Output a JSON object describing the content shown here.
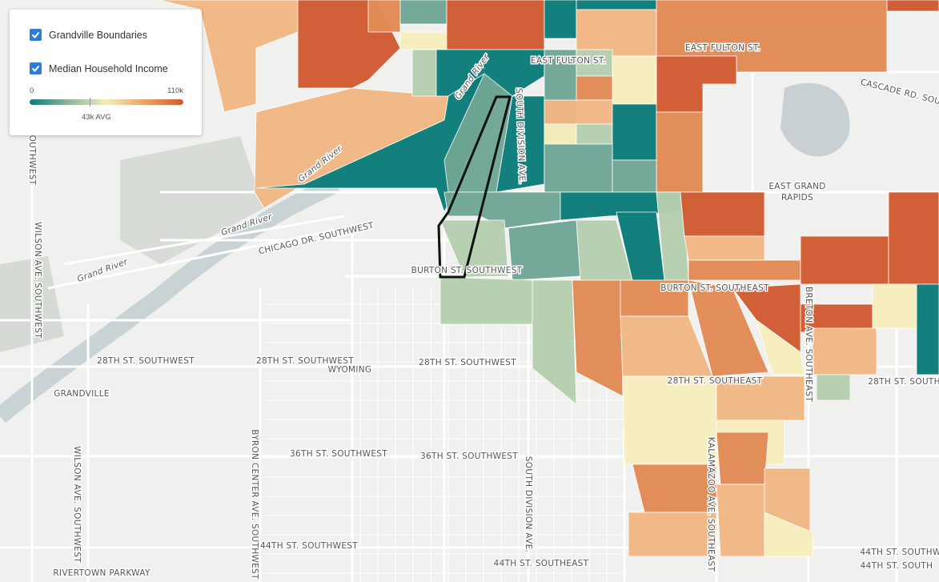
{
  "legend": {
    "layers": [
      {
        "label": "Grandville Boundaries",
        "checked": true
      },
      {
        "label": "Median Household Income",
        "checked": true
      }
    ],
    "scale": {
      "min": "0",
      "max": "110k",
      "avg": "43k AVG"
    }
  },
  "map_labels": [
    "EAST FULTON ST.",
    "EAST FULTON ST.",
    "CASCADE RD. SOU",
    "SOUTH DIVISION AVE.",
    "Grand River",
    "Grand River",
    "Grand River",
    "Grand River",
    "EAST GRAND",
    "RAPIDS",
    "CHICAGO DR. SOUTHWEST",
    "BURTON ST. SOUTHWEST",
    "BURTON ST. SOUTHEAST",
    "BRETON AVE. SOUTHEAST",
    "28TH ST. SOUTHWEST",
    "28TH ST. SOUTHWEST",
    "28TH ST. SOUTHWEST",
    "WYOMING",
    "GRANDVILLE",
    "28TH ST. SOUTHEAST",
    "28TH ST. SOUTHE",
    "WILSON AVE. SOUTHWEST",
    "WILSON AVE. SOUTHWEST",
    "BYRON CENTER AVE. SOUTHWEST",
    "36TH ST. SOUTHWEST",
    "36TH ST. SOUTHWEST",
    "SOUTH DIVISION AVE.",
    "KALAMAZOO AVE. SOUTHEAST",
    "44TH ST. SOUTHWEST",
    "44TH ST. SOUTHEAST",
    "44TH ST. SOUTHW",
    "44TH ST. SOUTH",
    "RIVERTOWN PARKWAY",
    "OUTHWEST"
  ]
}
